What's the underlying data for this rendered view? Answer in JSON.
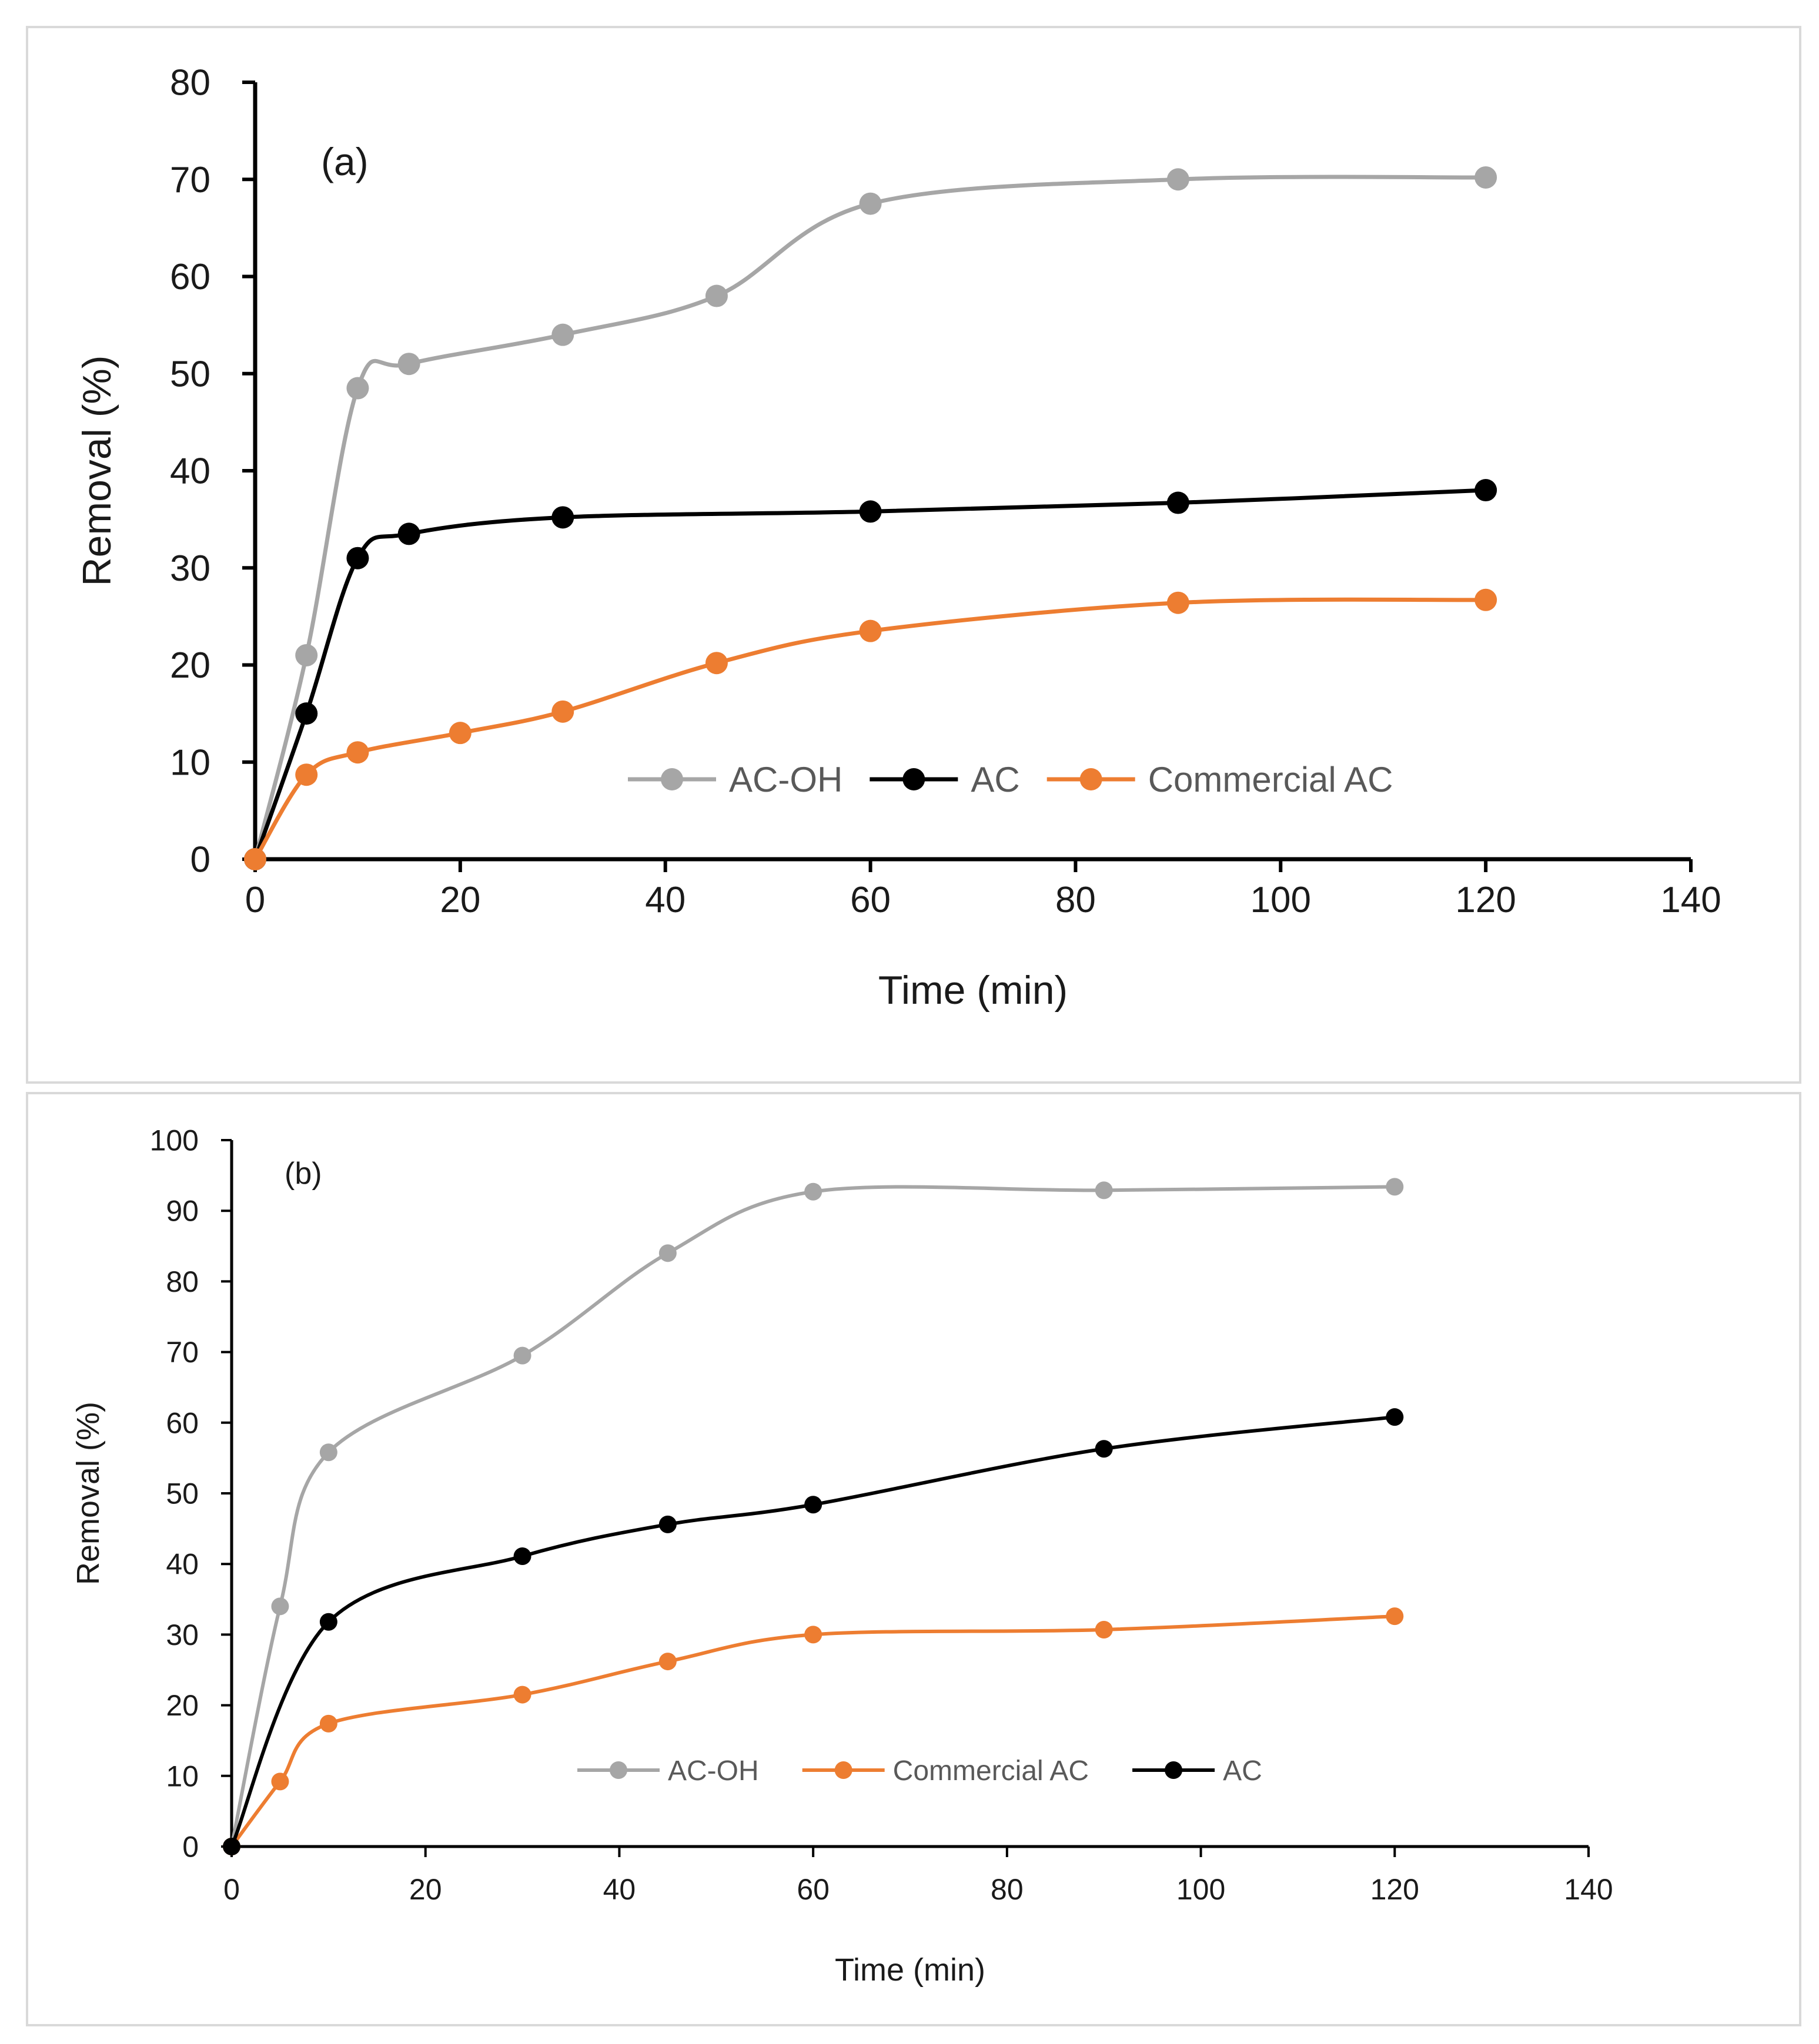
{
  "chart_data": [
    {
      "type": "line",
      "panel_label": "(a)",
      "xlabel": "Time (min)",
      "ylabel": "Removal (%)",
      "xlim": [
        0,
        140
      ],
      "ylim": [
        0,
        80
      ],
      "xticks": [
        0,
        20,
        40,
        60,
        80,
        100,
        120,
        140
      ],
      "yticks": [
        0,
        10,
        20,
        30,
        40,
        50,
        60,
        70,
        80
      ],
      "grid": false,
      "legend_position": "bottom-right",
      "legend": [
        "AC-OH",
        "AC",
        "Commercial AC"
      ],
      "series": [
        {
          "name": "AC-OH",
          "color": "#a6a6a6",
          "x": [
            0,
            5,
            10,
            15,
            30,
            45,
            60,
            90,
            120
          ],
          "y": [
            0,
            21,
            48.5,
            51,
            54,
            58,
            67.5,
            70,
            70.2
          ]
        },
        {
          "name": "AC",
          "color": "#000000",
          "x": [
            0,
            5,
            10,
            15,
            30,
            60,
            90,
            120
          ],
          "y": [
            0,
            15,
            31,
            33.5,
            35.2,
            35.8,
            36.7,
            38
          ]
        },
        {
          "name": "Commercial AC",
          "color": "#ed7d31",
          "x": [
            0,
            5,
            10,
            20,
            30,
            45,
            60,
            90,
            120
          ],
          "y": [
            0,
            8.7,
            11,
            13,
            15.2,
            20.2,
            23.5,
            26.4,
            26.7
          ]
        }
      ]
    },
    {
      "type": "line",
      "panel_label": "(b)",
      "xlabel": "Time (min)",
      "ylabel": "Removal (%)",
      "xlim": [
        0,
        140
      ],
      "ylim": [
        0,
        100
      ],
      "xticks": [
        0,
        20,
        40,
        60,
        80,
        100,
        120,
        140
      ],
      "yticks": [
        0,
        10,
        20,
        30,
        40,
        50,
        60,
        70,
        80,
        90,
        100
      ],
      "grid": false,
      "legend_position": "bottom-center",
      "legend": [
        "AC-OH",
        "Commercial AC",
        "AC"
      ],
      "series": [
        {
          "name": "AC-OH",
          "color": "#a6a6a6",
          "x": [
            0,
            5,
            10,
            30,
            45,
            60,
            90,
            120
          ],
          "y": [
            0,
            34,
            55.8,
            69.5,
            84,
            92.7,
            92.9,
            93.4
          ]
        },
        {
          "name": "Commercial AC",
          "color": "#ed7d31",
          "x": [
            0,
            5,
            10,
            30,
            45,
            60,
            90,
            120
          ],
          "y": [
            0,
            9.2,
            17.4,
            21.5,
            26.2,
            30,
            30.7,
            32.6
          ]
        },
        {
          "name": "AC",
          "color": "#000000",
          "x": [
            0,
            10,
            30,
            45,
            60,
            90,
            120
          ],
          "y": [
            0,
            31.8,
            41.1,
            45.6,
            48.4,
            56.3,
            60.8
          ]
        }
      ]
    }
  ]
}
